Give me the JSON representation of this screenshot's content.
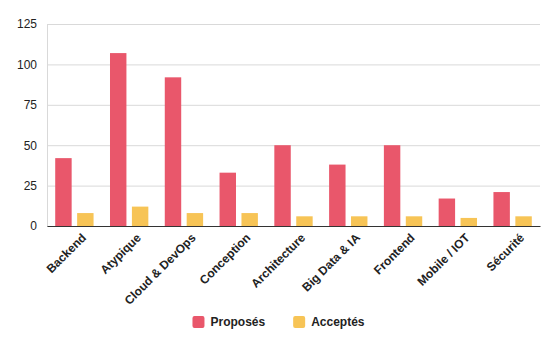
{
  "chart_data": {
    "type": "bar",
    "categories": [
      "Backend",
      "Atypique",
      "Cloud & DevOps",
      "Conception",
      "Architecture",
      "Big Data & IA",
      "Frontend",
      "Mobile / IOT",
      "Sécurité"
    ],
    "series": [
      {
        "name": "Proposés",
        "color": "#e9576b",
        "values": [
          42,
          107,
          92,
          33,
          50,
          38,
          50,
          17,
          21
        ]
      },
      {
        "name": "Acceptés",
        "color": "#f7c456",
        "values": [
          8,
          12,
          8,
          8,
          6,
          6,
          6,
          5,
          6
        ]
      }
    ],
    "ylim": [
      0,
      125
    ],
    "yticks": [
      0,
      25,
      50,
      75,
      100,
      125
    ],
    "grid": true,
    "legend": "bottom"
  }
}
